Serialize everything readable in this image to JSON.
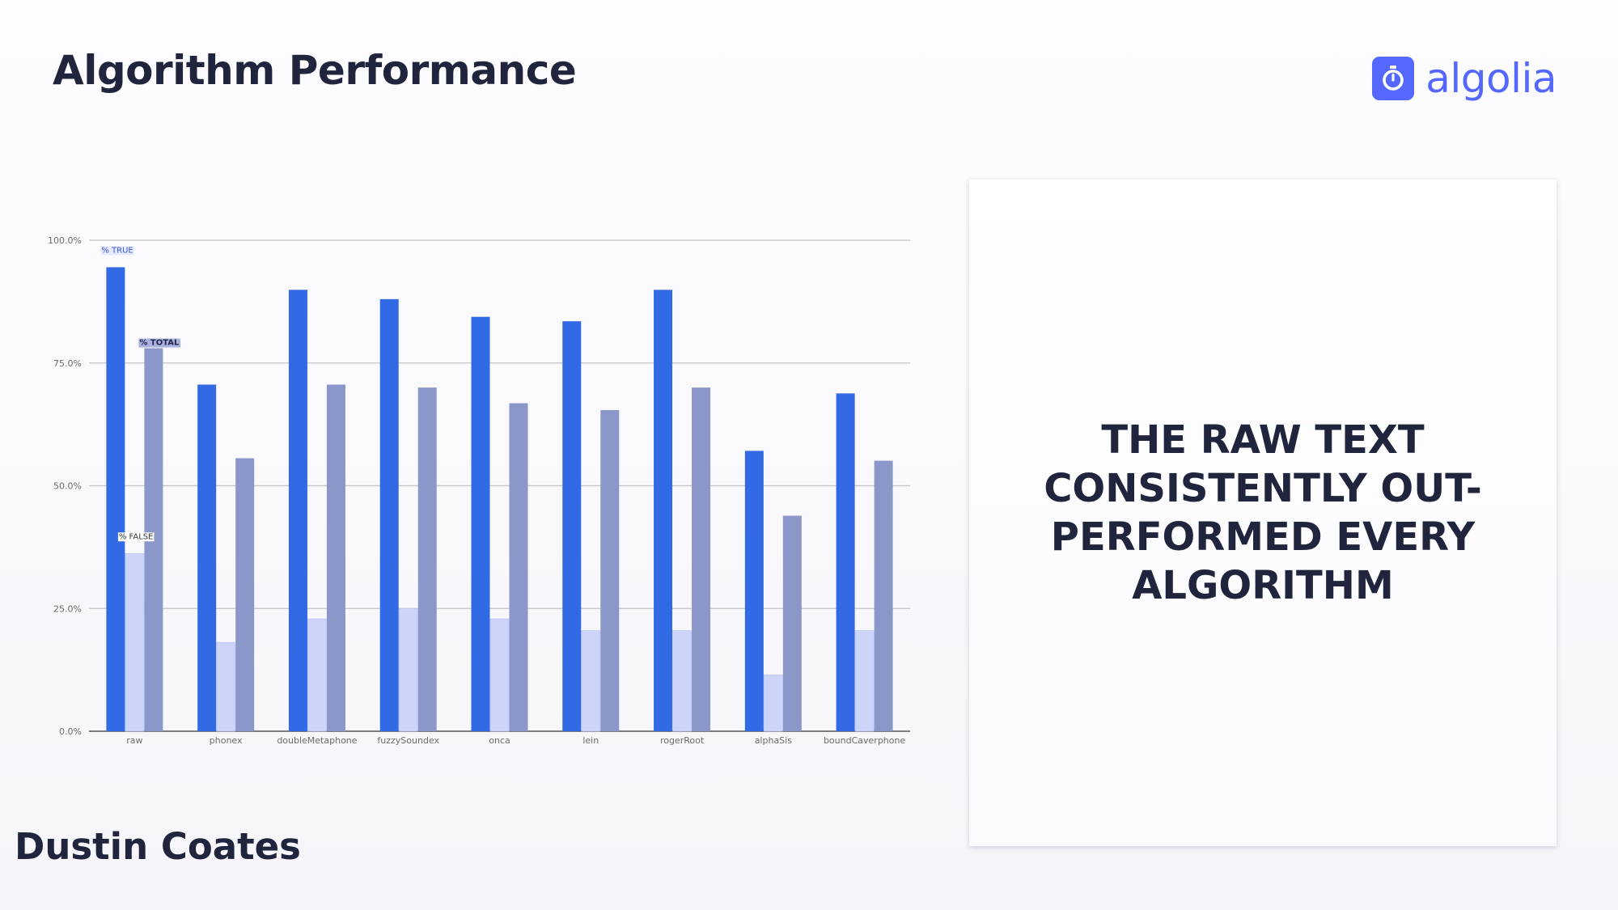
{
  "slide": {
    "title": "Algorithm Performance",
    "speaker": "Dustin Coates",
    "callout": "THE RAW TEXT CONSISTENTLY OUT-PERFORMED EVERY ALGORITHM"
  },
  "logo": {
    "text": "algolia",
    "icon": "stopwatch-icon",
    "color": "#5468ff"
  },
  "colors": {
    "title": "#21243d",
    "true_bar": "#3269e5",
    "false_bar": "#ccd4fa",
    "total_bar": "#8b97c9",
    "grid": "#c4c4c4",
    "tick_text": "#6b6b6b"
  },
  "chart_data": {
    "type": "bar",
    "categories": [
      "raw",
      "phonex",
      "doubleMetaphone",
      "fuzzySoundex",
      "onca",
      "lein",
      "rogerRoot",
      "alphaSis",
      "boundCaverphone"
    ],
    "series": [
      {
        "name": "% TRUE",
        "values": [
          94.5,
          70.6,
          89.9,
          88.0,
          84.4,
          83.5,
          89.9,
          57.1,
          68.8
        ]
      },
      {
        "name": "% FALSE",
        "values": [
          36.2,
          18.1,
          22.9,
          25.0,
          22.9,
          20.5,
          20.5,
          11.5,
          20.5
        ]
      },
      {
        "name": "% TOTAL",
        "values": [
          78.0,
          55.6,
          70.6,
          70.0,
          66.8,
          65.4,
          70.0,
          43.9,
          55.1
        ]
      }
    ],
    "y_ticks": [
      "0.0%",
      "25.0%",
      "50.0%",
      "75.0%",
      "100.0%"
    ],
    "ylim": [
      0,
      100
    ],
    "grid": true,
    "legend": "inline labels on first group"
  }
}
